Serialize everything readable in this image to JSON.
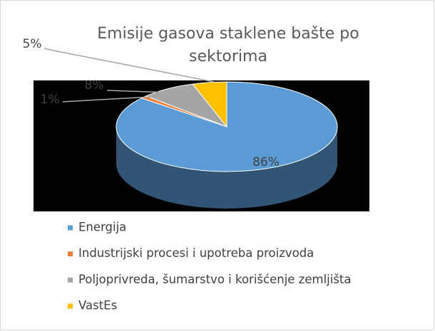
{
  "chart_data": {
    "type": "pie",
    "title": "Emisije gasova staklene bašte po sektorima",
    "categories": [
      "Energija",
      "Industrijski procesi i upotreba proizvoda",
      "Poljoprivreda, šumarstvo i korišćenje zemljišta",
      "VastEs"
    ],
    "values": [
      86,
      1,
      8,
      5
    ],
    "value_labels": [
      "86%",
      "1%",
      "8%",
      "5%"
    ],
    "colors": [
      "#5b9bd5",
      "#ed7d31",
      "#a5a5a5",
      "#ffc000"
    ],
    "legend": "bottom"
  }
}
